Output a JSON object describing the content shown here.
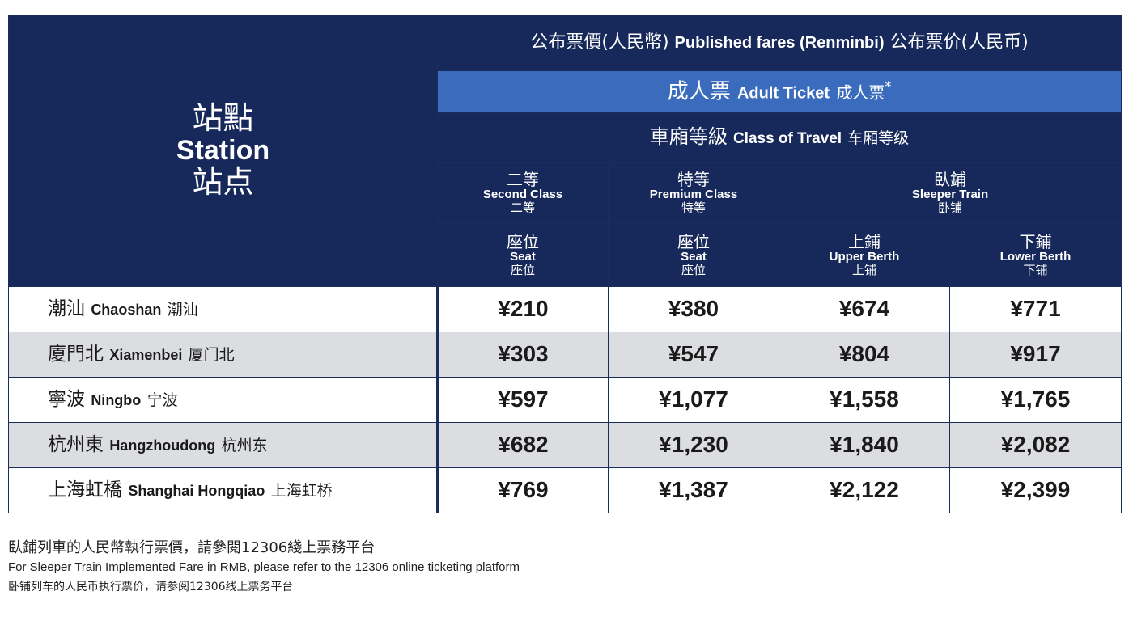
{
  "table": {
    "station_header": {
      "zh_trad": "站點",
      "en": "Station",
      "zh_simp": "站点"
    },
    "title": {
      "zh_trad": "公布票價(人民幣)",
      "en": "Published fares (Renminbi)",
      "zh_simp": "公布票价(人民币)"
    },
    "ticket_type": {
      "zh_trad": "成人票",
      "en": "Adult Ticket",
      "zh_simp": "成人票",
      "note": "*"
    },
    "class_of_travel": {
      "zh_trad": "車廂等級",
      "en": "Class of Travel",
      "zh_simp": "车厢等级"
    },
    "classes": [
      {
        "zh_trad": "二等",
        "en": "Second Class",
        "zh_simp": "二等"
      },
      {
        "zh_trad": "特等",
        "en": "Premium Class",
        "zh_simp": "特等"
      },
      {
        "zh_trad": "臥鋪",
        "en": "Sleeper Train",
        "zh_simp": "卧铺"
      }
    ],
    "berths": [
      {
        "zh_trad": "座位",
        "en": "Seat",
        "zh_simp": "座位"
      },
      {
        "zh_trad": "座位",
        "en": "Seat",
        "zh_simp": "座位"
      },
      {
        "zh_trad": "上鋪",
        "en": "Upper Berth",
        "zh_simp": "上铺"
      },
      {
        "zh_trad": "下鋪",
        "en": "Lower Berth",
        "zh_simp": "下铺"
      }
    ],
    "rows": [
      {
        "station": {
          "zh_trad": "潮汕",
          "en": "Chaoshan",
          "zh_simp": "潮汕"
        },
        "fares": [
          "¥210",
          "¥380",
          "¥674",
          "¥771"
        ]
      },
      {
        "station": {
          "zh_trad": "廈門北",
          "en": "Xiamenbei",
          "zh_simp": "厦门北"
        },
        "fares": [
          "¥303",
          "¥547",
          "¥804",
          "¥917"
        ]
      },
      {
        "station": {
          "zh_trad": "寧波",
          "en": "Ningbo",
          "zh_simp": "宁波"
        },
        "fares": [
          "¥597",
          "¥1,077",
          "¥1,558",
          "¥1,765"
        ]
      },
      {
        "station": {
          "zh_trad": "杭州東",
          "en": "Hangzhoudong",
          "zh_simp": "杭州东"
        },
        "fares": [
          "¥682",
          "¥1,230",
          "¥1,840",
          "¥2,082"
        ]
      },
      {
        "station": {
          "zh_trad": "上海虹橋",
          "en": "Shanghai Hongqiao",
          "zh_simp": "上海虹桥"
        },
        "fares": [
          "¥769",
          "¥1,387",
          "¥2,122",
          "¥2,399"
        ]
      }
    ]
  },
  "footnote": {
    "zh_trad": "臥鋪列車的人民幣執行票價，請參閱12306綫上票務平台",
    "en": "For Sleeper Train Implemented Fare in RMB, please refer to the 12306 online ticketing platform",
    "zh_simp": "卧铺列车的人民币执行票价，请参阅12306线上票务平台"
  }
}
